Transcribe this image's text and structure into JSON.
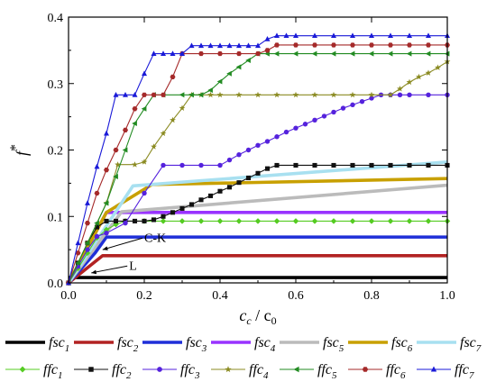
{
  "chart_data": {
    "type": "line",
    "xlabel": {
      "main": "c",
      "sub": "c",
      "sep": " / ",
      "denom": "c",
      "denom_sub": "0"
    },
    "ylabel": {
      "main": "f",
      "sup": "*"
    },
    "xlim": [
      0,
      1
    ],
    "ylim": [
      0,
      0.4
    ],
    "xticks": [
      "0.0",
      "0.2",
      "0.4",
      "0.6",
      "0.8",
      "1.0"
    ],
    "yticks": [
      "0.0",
      "0.1",
      "0.2",
      "0.3",
      "0.4"
    ],
    "annotations": [
      {
        "text": "C-K",
        "x": 0.2,
        "y": 0.062,
        "arrow_to": [
          0.09,
          0.05
        ]
      },
      {
        "text": "L",
        "x": 0.16,
        "y": 0.02,
        "arrow_to": [
          0.06,
          0.015
        ]
      }
    ],
    "series": [
      {
        "name": "fsc",
        "sub": "1",
        "style": "thick",
        "color": "#000000",
        "x": [
          0,
          1
        ],
        "y": [
          0.008,
          0.008
        ]
      },
      {
        "name": "fsc",
        "sub": "2",
        "style": "thick",
        "color": "#b22222",
        "x": [
          0,
          0.09,
          1
        ],
        "y": [
          0,
          0.041,
          0.041
        ]
      },
      {
        "name": "fsc",
        "sub": "3",
        "style": "thick",
        "color": "#1f2fd8",
        "x": [
          0,
          0.07,
          0.1,
          1
        ],
        "y": [
          0,
          0.045,
          0.069,
          0.069
        ]
      },
      {
        "name": "fsc",
        "sub": "4",
        "style": "thick",
        "color": "#9933ff",
        "x": [
          0,
          0.1,
          1
        ],
        "y": [
          0,
          0.106,
          0.106
        ]
      },
      {
        "name": "fsc",
        "sub": "5",
        "style": "thick",
        "color": "#bbbbbb",
        "x": [
          0,
          0.14,
          1
        ],
        "y": [
          0,
          0.107,
          0.147
        ]
      },
      {
        "name": "fsc",
        "sub": "6",
        "style": "thick",
        "color": "#c8a000",
        "x": [
          0,
          0.1,
          0.22,
          1
        ],
        "y": [
          0,
          0.106,
          0.148,
          0.157
        ]
      },
      {
        "name": "fsc",
        "sub": "7",
        "style": "thick",
        "color": "#a8e0f0",
        "x": [
          0,
          0.17,
          1
        ],
        "y": [
          0,
          0.146,
          0.182
        ]
      },
      {
        "name": "ffc",
        "sub": "1",
        "style": "marker",
        "marker": "diamond",
        "color": "#55cc22",
        "x": [
          0,
          0.025,
          0.05,
          0.075,
          0.1,
          0.125,
          0.15,
          0.2,
          0.25,
          0.3,
          0.35,
          0.4,
          0.45,
          0.5,
          0.55,
          0.6,
          0.65,
          0.7,
          0.75,
          0.8,
          0.85,
          0.9,
          0.95,
          1.0
        ],
        "y": [
          0,
          0.022,
          0.045,
          0.068,
          0.08,
          0.088,
          0.093,
          0.093,
          0.093,
          0.093,
          0.093,
          0.093,
          0.093,
          0.093,
          0.093,
          0.093,
          0.093,
          0.093,
          0.093,
          0.093,
          0.093,
          0.093,
          0.093,
          0.093
        ]
      },
      {
        "name": "ffc",
        "sub": "2",
        "style": "marker",
        "marker": "square",
        "color": "#111111",
        "x": [
          0,
          0.025,
          0.05,
          0.075,
          0.1,
          0.125,
          0.15,
          0.175,
          0.2,
          0.225,
          0.25,
          0.275,
          0.3,
          0.325,
          0.35,
          0.375,
          0.4,
          0.425,
          0.45,
          0.475,
          0.5,
          0.525,
          0.55,
          0.6,
          0.65,
          0.7,
          0.75,
          0.8,
          0.85,
          0.9,
          0.95,
          1.0
        ],
        "y": [
          0,
          0.03,
          0.06,
          0.084,
          0.093,
          0.093,
          0.093,
          0.093,
          0.093,
          0.095,
          0.1,
          0.106,
          0.112,
          0.118,
          0.125,
          0.131,
          0.138,
          0.144,
          0.151,
          0.158,
          0.165,
          0.172,
          0.177,
          0.177,
          0.177,
          0.177,
          0.177,
          0.177,
          0.177,
          0.177,
          0.177,
          0.177
        ]
      },
      {
        "name": "ffc",
        "sub": "3",
        "style": "marker",
        "marker": "circle",
        "color": "#5522dd",
        "x": [
          0,
          0.025,
          0.05,
          0.075,
          0.1,
          0.15,
          0.2,
          0.25,
          0.3,
          0.35,
          0.4,
          0.425,
          0.45,
          0.475,
          0.5,
          0.525,
          0.55,
          0.575,
          0.6,
          0.625,
          0.65,
          0.675,
          0.7,
          0.725,
          0.75,
          0.775,
          0.8,
          0.825,
          0.85,
          0.875,
          0.9,
          0.95,
          1.0
        ],
        "y": [
          0,
          0.025,
          0.05,
          0.07,
          0.075,
          0.09,
          0.135,
          0.177,
          0.177,
          0.177,
          0.177,
          0.185,
          0.193,
          0.2,
          0.207,
          0.213,
          0.22,
          0.227,
          0.233,
          0.239,
          0.245,
          0.251,
          0.257,
          0.263,
          0.268,
          0.273,
          0.278,
          0.283,
          0.283,
          0.283,
          0.283,
          0.283,
          0.283
        ]
      },
      {
        "name": "ffc",
        "sub": "4",
        "style": "marker",
        "marker": "star",
        "color": "#8b8b22",
        "x": [
          0,
          0.05,
          0.1,
          0.13,
          0.175,
          0.2,
          0.225,
          0.25,
          0.275,
          0.3,
          0.325,
          0.35,
          0.375,
          0.4,
          0.45,
          0.5,
          0.55,
          0.6,
          0.65,
          0.7,
          0.75,
          0.8,
          0.85,
          0.875,
          0.9,
          0.925,
          0.95,
          0.975,
          1.0
        ],
        "y": [
          0,
          0.06,
          0.12,
          0.178,
          0.178,
          0.182,
          0.205,
          0.225,
          0.245,
          0.263,
          0.283,
          0.283,
          0.283,
          0.283,
          0.283,
          0.283,
          0.283,
          0.283,
          0.283,
          0.283,
          0.283,
          0.283,
          0.283,
          0.292,
          0.302,
          0.31,
          0.316,
          0.324,
          0.333
        ]
      },
      {
        "name": "ffc",
        "sub": "5",
        "style": "marker",
        "marker": "tri-left",
        "color": "#228b22",
        "x": [
          0,
          0.025,
          0.05,
          0.075,
          0.1,
          0.125,
          0.15,
          0.175,
          0.2,
          0.225,
          0.25,
          0.3,
          0.325,
          0.35,
          0.375,
          0.4,
          0.425,
          0.45,
          0.475,
          0.5,
          0.525,
          0.55,
          0.6,
          0.65,
          0.7,
          0.75,
          0.8,
          0.85,
          0.9,
          0.95,
          1.0
        ],
        "y": [
          0,
          0.03,
          0.06,
          0.09,
          0.12,
          0.16,
          0.2,
          0.24,
          0.262,
          0.283,
          0.283,
          0.283,
          0.283,
          0.283,
          0.29,
          0.303,
          0.315,
          0.325,
          0.335,
          0.345,
          0.345,
          0.345,
          0.345,
          0.345,
          0.345,
          0.345,
          0.345,
          0.345,
          0.345,
          0.345,
          0.345
        ]
      },
      {
        "name": "ffc",
        "sub": "6",
        "style": "marker",
        "marker": "hexagon",
        "color": "#a52a2a",
        "x": [
          0,
          0.025,
          0.05,
          0.075,
          0.1,
          0.125,
          0.15,
          0.175,
          0.2,
          0.225,
          0.25,
          0.275,
          0.3,
          0.35,
          0.4,
          0.45,
          0.5,
          0.525,
          0.55,
          0.6,
          0.65,
          0.7,
          0.75,
          0.8,
          0.85,
          0.9,
          0.95,
          1.0
        ],
        "y": [
          0,
          0.045,
          0.09,
          0.135,
          0.17,
          0.2,
          0.23,
          0.262,
          0.283,
          0.283,
          0.283,
          0.31,
          0.345,
          0.345,
          0.345,
          0.345,
          0.345,
          0.35,
          0.358,
          0.358,
          0.358,
          0.358,
          0.358,
          0.358,
          0.358,
          0.358,
          0.358,
          0.358
        ]
      },
      {
        "name": "ffc",
        "sub": "7",
        "style": "marker",
        "marker": "triangle",
        "color": "#1a1ad8",
        "x": [
          0,
          0.025,
          0.05,
          0.075,
          0.1,
          0.125,
          0.15,
          0.175,
          0.2,
          0.225,
          0.25,
          0.275,
          0.3,
          0.325,
          0.35,
          0.375,
          0.4,
          0.425,
          0.45,
          0.475,
          0.5,
          0.525,
          0.55,
          0.575,
          0.6,
          0.65,
          0.7,
          0.75,
          0.8,
          0.85,
          0.9,
          0.95,
          1.0
        ],
        "y": [
          0,
          0.06,
          0.12,
          0.175,
          0.225,
          0.283,
          0.283,
          0.283,
          0.315,
          0.345,
          0.345,
          0.345,
          0.345,
          0.357,
          0.357,
          0.357,
          0.357,
          0.357,
          0.357,
          0.357,
          0.357,
          0.367,
          0.372,
          0.372,
          0.372,
          0.372,
          0.372,
          0.372,
          0.372,
          0.372,
          0.372,
          0.372,
          0.372
        ]
      }
    ]
  }
}
